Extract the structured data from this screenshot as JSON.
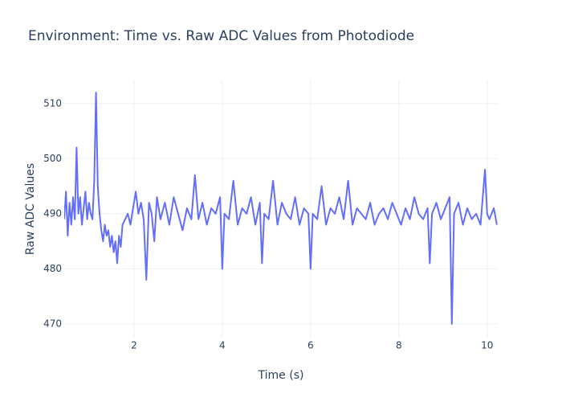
{
  "chart_data": {
    "type": "line",
    "title": "Environment: Time vs. Raw ADC Values from Photodiode",
    "x_label": "Time (s)",
    "y_label": "Raw ADC Values",
    "x": [
      0.42,
      0.46,
      0.5,
      0.54,
      0.58,
      0.62,
      0.66,
      0.7,
      0.74,
      0.78,
      0.82,
      0.86,
      0.9,
      0.94,
      0.98,
      1.02,
      1.06,
      1.1,
      1.14,
      1.18,
      1.22,
      1.26,
      1.3,
      1.34,
      1.38,
      1.42,
      1.46,
      1.5,
      1.54,
      1.58,
      1.62,
      1.66,
      1.7,
      1.74,
      1.8,
      1.86,
      1.92,
      1.98,
      2.04,
      2.1,
      2.16,
      2.22,
      2.28,
      2.34,
      2.4,
      2.46,
      2.52,
      2.6,
      2.7,
      2.8,
      2.9,
      3.0,
      3.1,
      3.2,
      3.3,
      3.38,
      3.46,
      3.55,
      3.65,
      3.75,
      3.85,
      3.95,
      4.0,
      4.05,
      4.15,
      4.25,
      4.35,
      4.45,
      4.55,
      4.65,
      4.75,
      4.85,
      4.9,
      4.95,
      5.05,
      5.15,
      5.25,
      5.35,
      5.45,
      5.55,
      5.65,
      5.75,
      5.85,
      5.95,
      6.0,
      6.05,
      6.15,
      6.25,
      6.35,
      6.45,
      6.55,
      6.65,
      6.75,
      6.85,
      6.95,
      7.05,
      7.15,
      7.25,
      7.35,
      7.45,
      7.55,
      7.65,
      7.75,
      7.85,
      7.95,
      8.05,
      8.15,
      8.25,
      8.35,
      8.45,
      8.55,
      8.65,
      8.7,
      8.75,
      8.85,
      8.95,
      9.05,
      9.15,
      9.2,
      9.25,
      9.35,
      9.45,
      9.55,
      9.65,
      9.75,
      9.85,
      9.95,
      10.0,
      10.05,
      10.15,
      10.22
    ],
    "series": [
      {
        "name": "Raw ADC Values",
        "color": "#636efa",
        "values": [
          489,
          494,
          486,
          492,
          488,
          493,
          489,
          502,
          490,
          493,
          488,
          491,
          494,
          489,
          492,
          490,
          489,
          496,
          512,
          495,
          490,
          487,
          485,
          488,
          486,
          487,
          484,
          486,
          483,
          485,
          481,
          486,
          484,
          488,
          489,
          490,
          488,
          491,
          494,
          490,
          492,
          489,
          478,
          492,
          490,
          485,
          493,
          489,
          492,
          488,
          493,
          490,
          487,
          491,
          489,
          497,
          489,
          492,
          488,
          491,
          490,
          493,
          480,
          490,
          489,
          496,
          488,
          491,
          490,
          493,
          488,
          492,
          481,
          490,
          489,
          496,
          488,
          492,
          490,
          489,
          493,
          488,
          491,
          490,
          480,
          490,
          489,
          495,
          488,
          491,
          490,
          493,
          489,
          496,
          488,
          491,
          490,
          489,
          492,
          488,
          490,
          491,
          489,
          492,
          490,
          488,
          491,
          489,
          493,
          490,
          489,
          491,
          481,
          490,
          492,
          489,
          491,
          493,
          470,
          490,
          492,
          488,
          491,
          489,
          490,
          488,
          498,
          490,
          489,
          491,
          488
        ]
      }
    ],
    "xlim": [
      0.42,
      10.24
    ],
    "ylim": [
      467.5,
      514.2
    ],
    "xticks": [
      2,
      4,
      6,
      8,
      10
    ],
    "yticks": [
      470,
      480,
      490,
      500,
      510
    ],
    "grid": true
  }
}
